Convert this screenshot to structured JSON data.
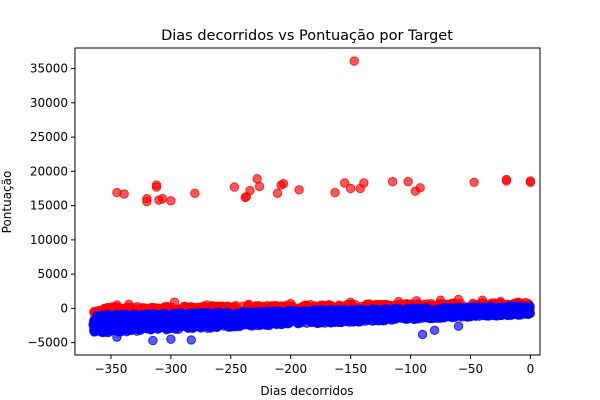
{
  "chart_data": {
    "type": "scatter",
    "title": "Dias decorridos vs Pontuação por Target",
    "xlabel": "Dias decorridos",
    "ylabel": "Pontuação",
    "xlim": [
      -380,
      8
    ],
    "ylim": [
      -6800,
      38000
    ],
    "xticks": [
      -350,
      -300,
      -250,
      -200,
      -150,
      -100,
      -50,
      0
    ],
    "yticks": [
      -5000,
      0,
      5000,
      10000,
      15000,
      20000,
      25000,
      30000,
      35000
    ],
    "grid": false,
    "series": [
      {
        "color": "#ff0000",
        "band": {
          "x_start": -365,
          "x_end": 0,
          "y_low_start": -1200,
          "y_high_start": 200,
          "y_low_end": -200,
          "y_high_end": 900
        },
        "points": [
          {
            "x": -345,
            "y": 16900
          },
          {
            "x": -339,
            "y": 16700
          },
          {
            "x": -320,
            "y": 16000
          },
          {
            "x": -320,
            "y": 15600
          },
          {
            "x": -312,
            "y": 17700
          },
          {
            "x": -312,
            "y": 18000
          },
          {
            "x": -310,
            "y": 15800
          },
          {
            "x": -307,
            "y": 16000
          },
          {
            "x": -300,
            "y": 15700
          },
          {
            "x": -280,
            "y": 16800
          },
          {
            "x": -247,
            "y": 17700
          },
          {
            "x": -238,
            "y": 16200
          },
          {
            "x": -237,
            "y": 16300
          },
          {
            "x": -234,
            "y": 17200
          },
          {
            "x": -228,
            "y": 18900
          },
          {
            "x": -226,
            "y": 17800
          },
          {
            "x": -211,
            "y": 16800
          },
          {
            "x": -208,
            "y": 18000
          },
          {
            "x": -206,
            "y": 18200
          },
          {
            "x": -193,
            "y": 17300
          },
          {
            "x": -163,
            "y": 16900
          },
          {
            "x": -155,
            "y": 18300
          },
          {
            "x": -150,
            "y": 17500
          },
          {
            "x": -147,
            "y": 36100
          },
          {
            "x": -142,
            "y": 17500
          },
          {
            "x": -139,
            "y": 18300
          },
          {
            "x": -115,
            "y": 18500
          },
          {
            "x": -102,
            "y": 18500
          },
          {
            "x": -96,
            "y": 17100
          },
          {
            "x": -92,
            "y": 17600
          },
          {
            "x": -47,
            "y": 18400
          },
          {
            "x": -20,
            "y": 18600
          },
          {
            "x": -20,
            "y": 18800
          },
          {
            "x": 0,
            "y": 18400
          },
          {
            "x": 0,
            "y": 18600
          },
          {
            "x": -345,
            "y": 500
          },
          {
            "x": -335,
            "y": 600
          },
          {
            "x": -297,
            "y": 900
          },
          {
            "x": -270,
            "y": 500
          },
          {
            "x": -235,
            "y": 600
          },
          {
            "x": -200,
            "y": 700
          },
          {
            "x": -150,
            "y": 900
          },
          {
            "x": -110,
            "y": 1000
          },
          {
            "x": -95,
            "y": 1100
          },
          {
            "x": -75,
            "y": 1200
          },
          {
            "x": -60,
            "y": 1300
          },
          {
            "x": -40,
            "y": 1200
          },
          {
            "x": -25,
            "y": 1000
          },
          {
            "x": -10,
            "y": 900
          }
        ]
      },
      {
        "color": "#0000ff",
        "band": {
          "x_start": -365,
          "x_end": 0,
          "y_low_start": -3600,
          "y_high_start": -900,
          "y_low_end": -900,
          "y_high_end": 400
        },
        "points": [
          {
            "x": -315,
            "y": -4700
          },
          {
            "x": -300,
            "y": -4500
          },
          {
            "x": -283,
            "y": -4600
          },
          {
            "x": -345,
            "y": -4200
          },
          {
            "x": -90,
            "y": -3800
          },
          {
            "x": -80,
            "y": -3200
          },
          {
            "x": -60,
            "y": -2600
          }
        ]
      }
    ]
  }
}
